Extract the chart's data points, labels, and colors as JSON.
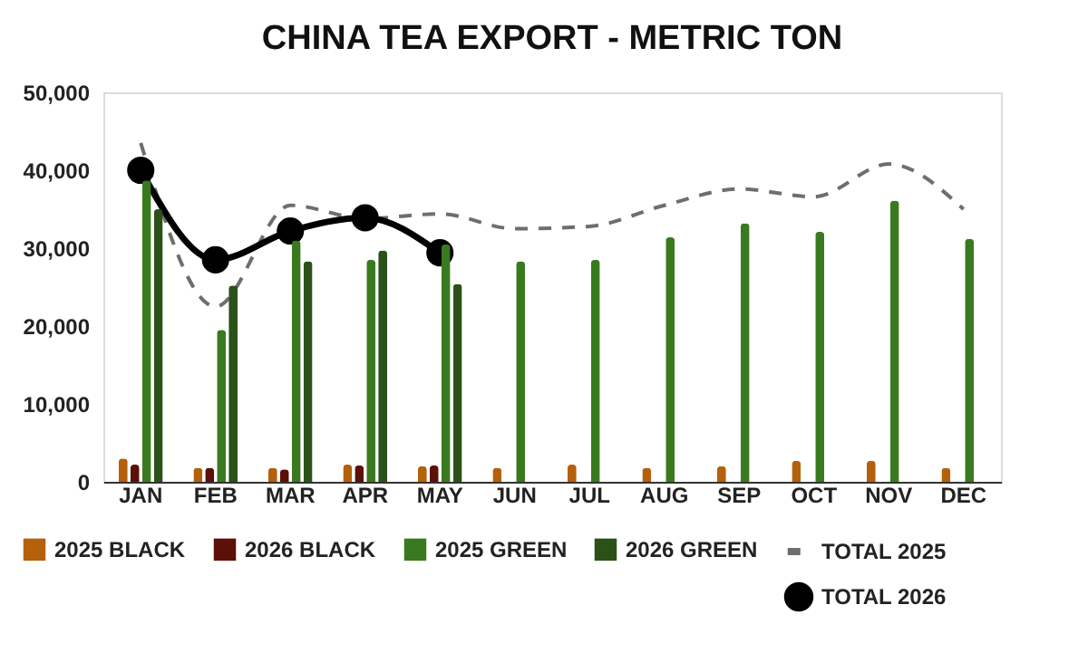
{
  "chart_data": {
    "type": "bar",
    "title": "CHINA TEA EXPORT - METRIC TON",
    "categories": [
      "JAN",
      "FEB",
      "MAR",
      "APR",
      "MAY",
      "JUN",
      "JUL",
      "AUG",
      "SEP",
      "OCT",
      "NOV",
      "DEC"
    ],
    "series": [
      {
        "name": "2025 BLACK",
        "color": "#b5600a",
        "values": [
          3000,
          1800,
          1800,
          2200,
          2000,
          1800,
          2200,
          1800,
          2000,
          2700,
          2700,
          1800
        ]
      },
      {
        "name": "2026 BLACK",
        "color": "#5c1008",
        "values": [
          2200,
          1800,
          1600,
          2100,
          2100,
          null,
          null,
          null,
          null,
          null,
          null,
          null
        ]
      },
      {
        "name": "2025 GREEN",
        "color": "#3a7a1f",
        "values": [
          38700,
          19500,
          31000,
          28500,
          30500,
          28300,
          28500,
          31400,
          33200,
          32100,
          36100,
          31200
        ]
      },
      {
        "name": "2026 GREEN",
        "color": "#2a5218",
        "values": [
          35000,
          25200,
          28300,
          29700,
          25400,
          null,
          null,
          null,
          null,
          null,
          null,
          null
        ]
      },
      {
        "name": "TOTAL 2025",
        "type": "line",
        "color": "#6e6e6e",
        "line_style": "dashed",
        "marker": "none",
        "values": [
          43500,
          22500,
          35500,
          33800,
          34400,
          32500,
          32800,
          35500,
          37600,
          36600,
          40800,
          35000
        ]
      },
      {
        "name": "TOTAL 2026",
        "type": "line",
        "color": "#000000",
        "line_style": "solid",
        "marker": "circle",
        "values": [
          40000,
          28500,
          32200,
          33900,
          29400,
          null,
          null,
          null,
          null,
          null,
          null,
          null
        ]
      }
    ],
    "ylim": [
      0,
      50000
    ],
    "yticks": [
      0,
      {
        "value": 10000,
        "label": "10,000"
      },
      {
        "value": 20000,
        "label": "20,000"
      },
      {
        "value": 30000,
        "label": "30,000"
      },
      {
        "value": 40000,
        "label": "40,000"
      },
      {
        "value": 50000,
        "label": "50,000"
      }
    ],
    "grid": false,
    "legend": "bottom"
  }
}
